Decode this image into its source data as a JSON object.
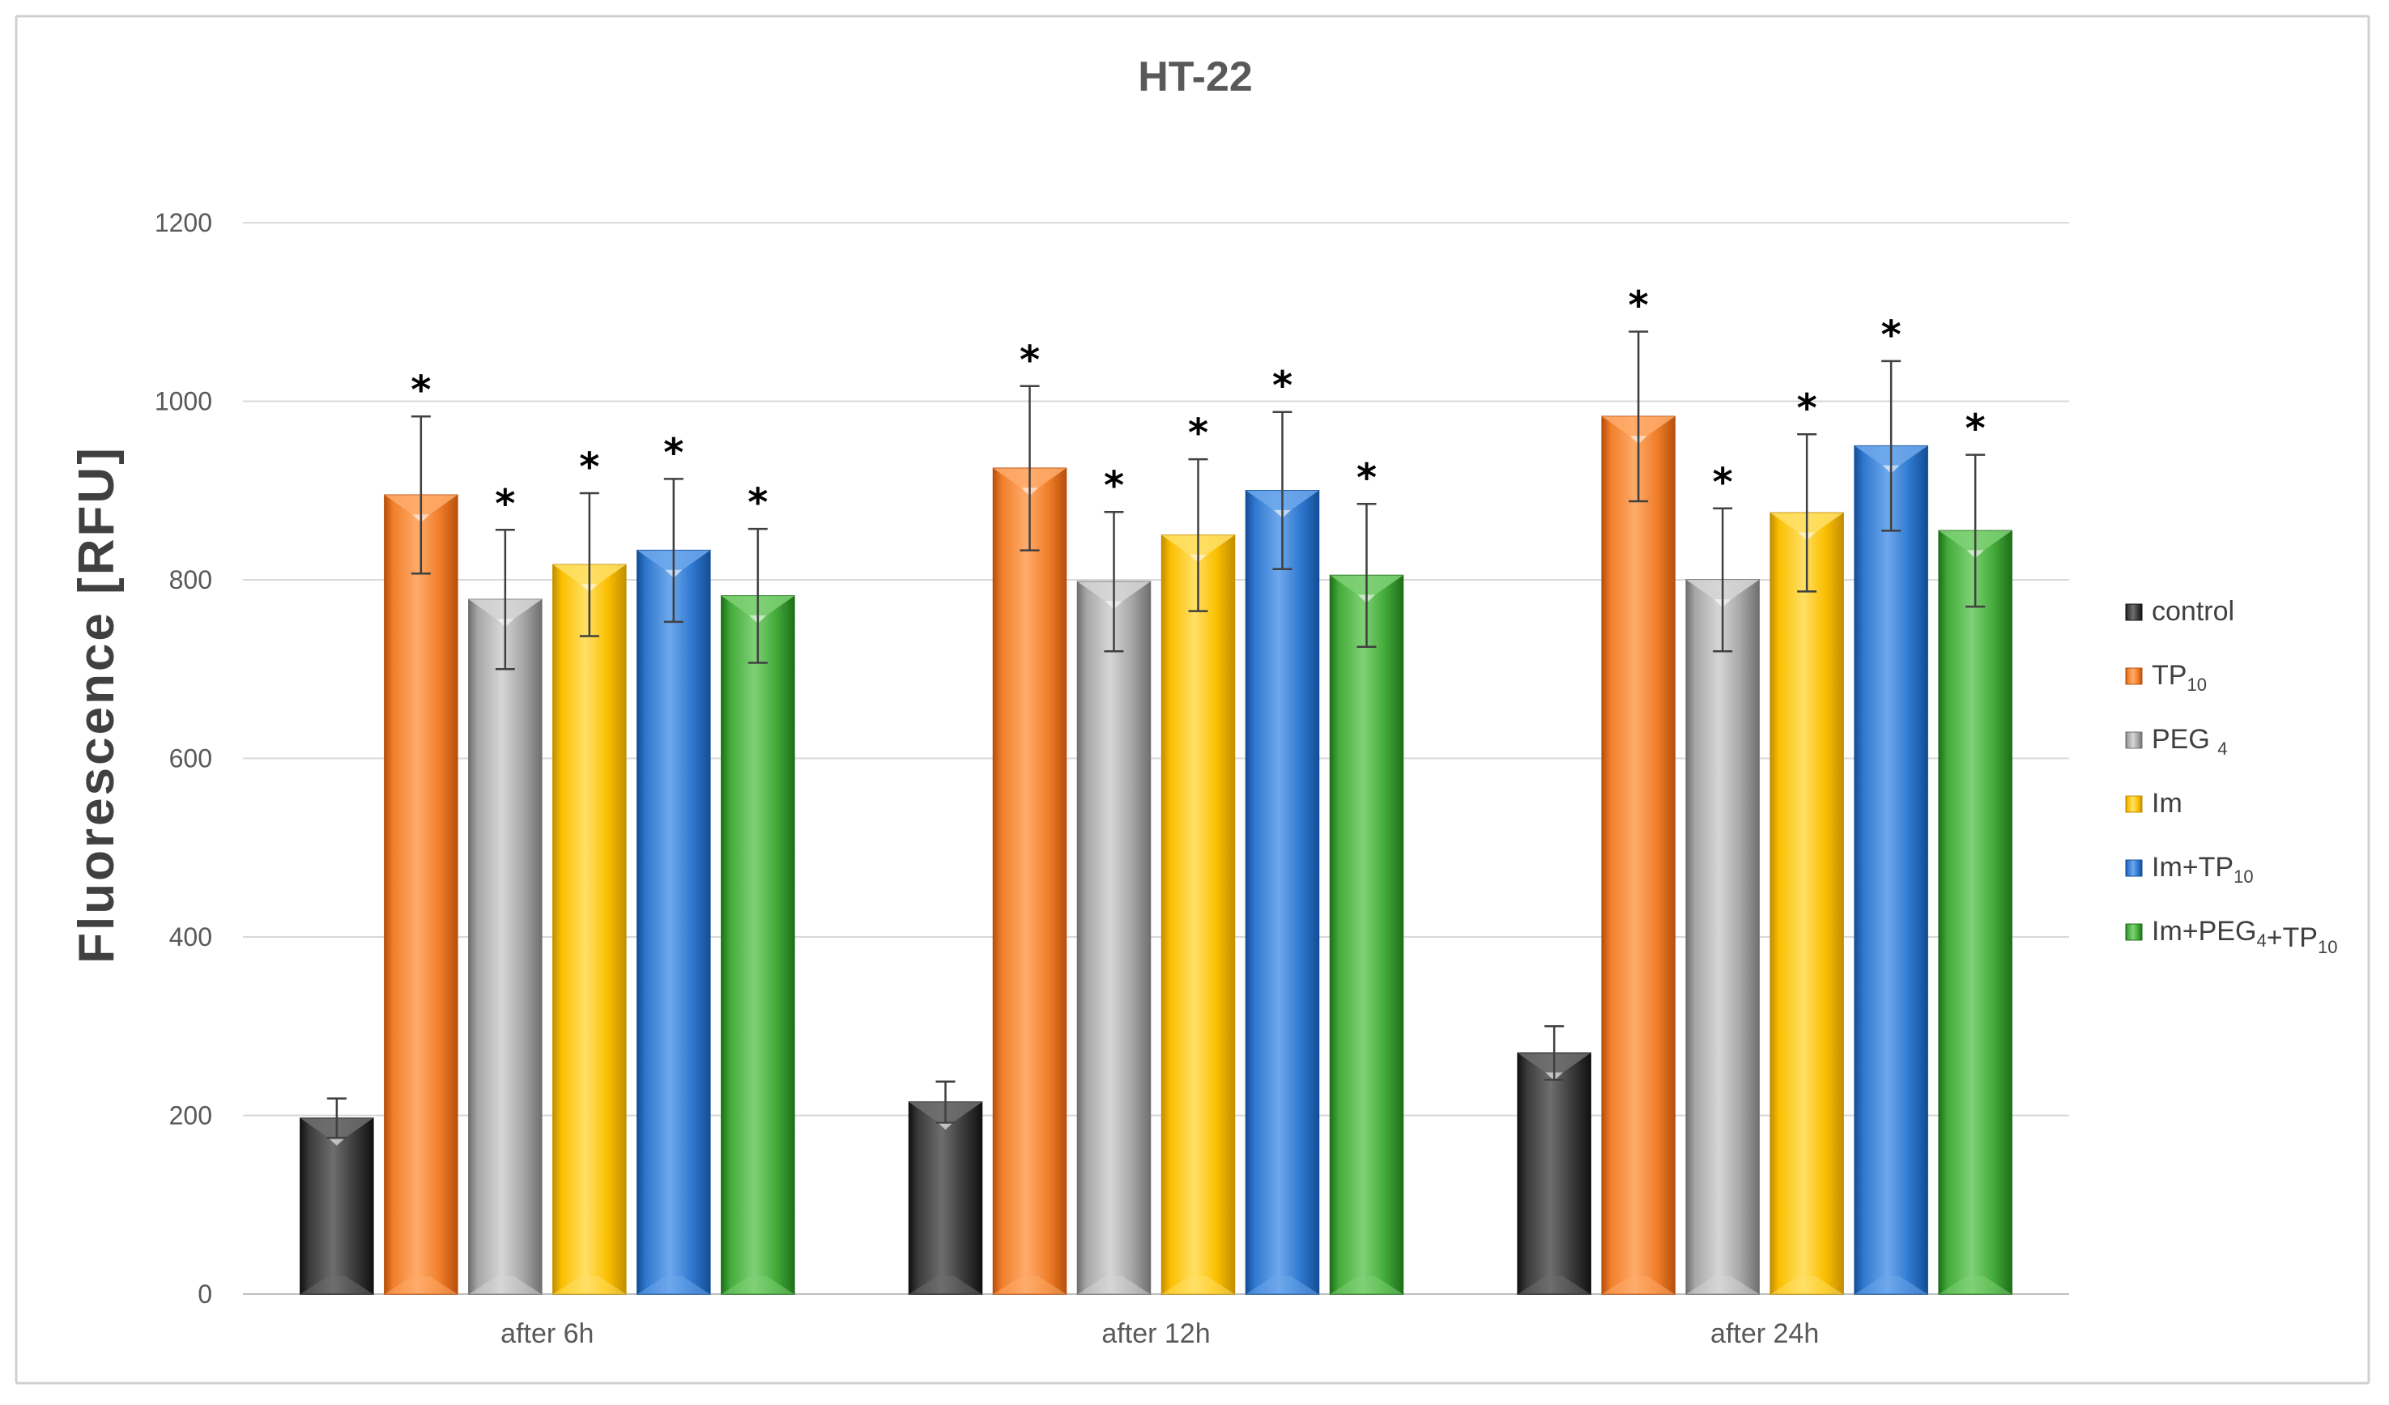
{
  "chart_data": {
    "type": "bar",
    "title": "HT-22",
    "xlabel": "",
    "ylabel": "Fluorescence [RFU]",
    "ylim": [
      0,
      1200
    ],
    "yticks": [
      "0",
      "200",
      "400",
      "600",
      "800",
      "1000",
      "1200"
    ],
    "ytick_values": [
      0,
      200,
      400,
      600,
      800,
      1000,
      1200
    ],
    "grid": true,
    "legend_position": "right",
    "significance_marker": "*",
    "categories": [
      "after 6h",
      "after 12h",
      "after 24h"
    ],
    "series": [
      {
        "name": "control",
        "legend_main": "control",
        "legend_sub": "",
        "color": "#3a3a3a",
        "dark": "#111111",
        "light": "#6e6e6e",
        "values": [
          197,
          215,
          270
        ],
        "errors": [
          22,
          23,
          30
        ],
        "significant": [
          false,
          false,
          false
        ]
      },
      {
        "name": "TP10",
        "legend_main": "TP",
        "legend_sub": "10",
        "color": "#f07f2a",
        "dark": "#b8500d",
        "light": "#ffab6b",
        "values": [
          895,
          925,
          983
        ],
        "errors": [
          88,
          92,
          95
        ],
        "significant": [
          true,
          true,
          true
        ]
      },
      {
        "name": "PEG 4",
        "legend_main": "PEG ",
        "legend_sub": "4",
        "color": "#a6a6a6",
        "dark": "#6f6f6f",
        "light": "#d6d6d6",
        "values": [
          778,
          798,
          800
        ],
        "errors": [
          78,
          78,
          80
        ],
        "significant": [
          true,
          true,
          true
        ]
      },
      {
        "name": "Im",
        "legend_main": "Im",
        "legend_sub": "",
        "color": "#fbbf00",
        "dark": "#c48e00",
        "light": "#ffe066",
        "values": [
          817,
          850,
          875
        ],
        "errors": [
          80,
          85,
          88
        ],
        "significant": [
          true,
          true,
          true
        ]
      },
      {
        "name": "Im+TP10",
        "legend_main": "Im+TP",
        "legend_sub": "10",
        "color": "#2f78cf",
        "dark": "#134e96",
        "light": "#6ea8ec",
        "values": [
          833,
          900,
          950
        ],
        "errors": [
          80,
          88,
          95
        ],
        "significant": [
          true,
          true,
          true
        ]
      },
      {
        "name": "Im+PEG4+TP10",
        "legend_main": "Im+PEG",
        "legend_sub": "4",
        "legend_main2": "+TP",
        "legend_sub2": "10",
        "color": "#43ab3a",
        "dark": "#1e6f18",
        "light": "#7fd176",
        "values": [
          782,
          805,
          855
        ],
        "errors": [
          75,
          80,
          85
        ],
        "significant": [
          true,
          true,
          true
        ]
      }
    ]
  }
}
